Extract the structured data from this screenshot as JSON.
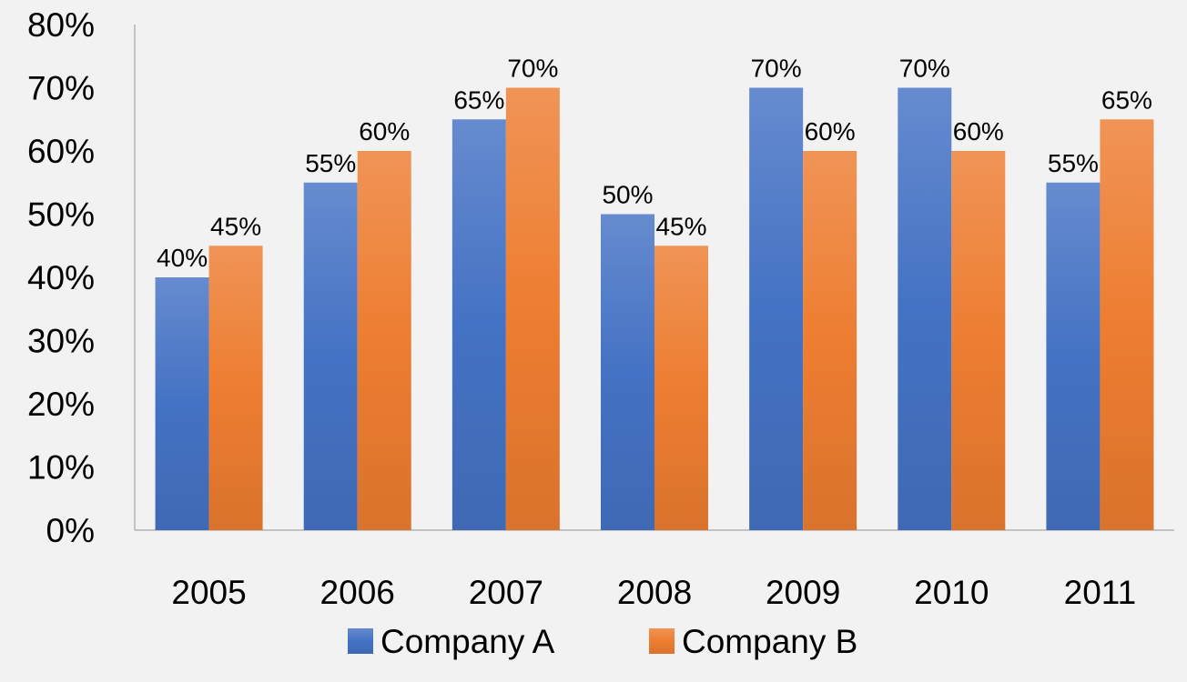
{
  "chart_data": {
    "type": "bar",
    "title": "",
    "xlabel": "",
    "ylabel": "",
    "categories": [
      "2005",
      "2006",
      "2007",
      "2008",
      "2009",
      "2010",
      "2011"
    ],
    "series": [
      {
        "name": "Company A",
        "values": [
          40,
          55,
          65,
          50,
          70,
          70,
          55
        ],
        "data_labels": [
          "40%",
          "55%",
          "65%",
          "50%",
          "70%",
          "70%",
          "55%"
        ],
        "color": "#4472c4"
      },
      {
        "name": "Company B",
        "values": [
          45,
          60,
          70,
          45,
          60,
          60,
          65
        ],
        "data_labels": [
          "45%",
          "60%",
          "70%",
          "45%",
          "60%",
          "60%",
          "65%"
        ],
        "color": "#ed7d31"
      }
    ],
    "ylim": [
      0,
      80
    ],
    "y_ticks": [
      "0%",
      "10%",
      "20%",
      "30%",
      "40%",
      "50%",
      "60%",
      "70%",
      "80%"
    ],
    "grid": false,
    "legend_position": "bottom"
  }
}
